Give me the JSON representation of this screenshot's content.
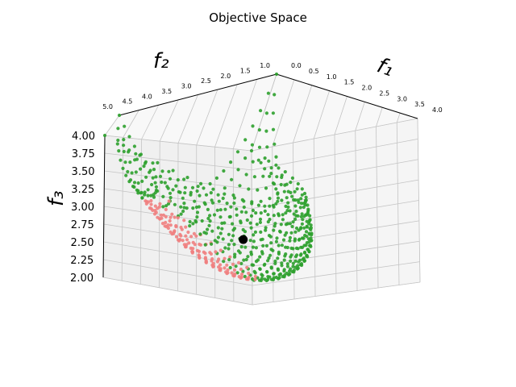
{
  "chart_data": {
    "type": "scatter",
    "title": "Objective Space",
    "axes": {
      "x": {
        "label": "f₁",
        "range": [
          0.0,
          4.0
        ],
        "ticks": [
          "0.0",
          "0.5",
          "1.0",
          "1.5",
          "2.0",
          "2.5",
          "3.0",
          "3.5",
          "4.0"
        ]
      },
      "y": {
        "label": "f₂",
        "range": [
          1.0,
          5.0
        ],
        "ticks": [
          "1.0",
          "1.5",
          "2.0",
          "2.5",
          "3.0",
          "3.5",
          "4.0",
          "4.5",
          "5.0"
        ]
      },
      "z": {
        "label": "f₃",
        "range": [
          2.0,
          4.0
        ],
        "ticks": [
          "2.00",
          "2.25",
          "2.50",
          "2.75",
          "3.00",
          "3.25",
          "3.50",
          "3.75",
          "4.00"
        ]
      }
    },
    "grid": true,
    "surface": {
      "description_of_shape": "paraboloid bowl of points",
      "vertex": [
        2.0,
        3.0,
        2.0
      ],
      "f1_range": [
        0.0,
        4.0
      ],
      "f2_range": [
        1.0,
        5.0
      ]
    },
    "series": [
      {
        "color": "#2ca02c"
      },
      {
        "color": "#f08080"
      },
      {
        "color": "#000000",
        "x": 2.0,
        "y": 3.0,
        "z": 2.5
      }
    ]
  }
}
